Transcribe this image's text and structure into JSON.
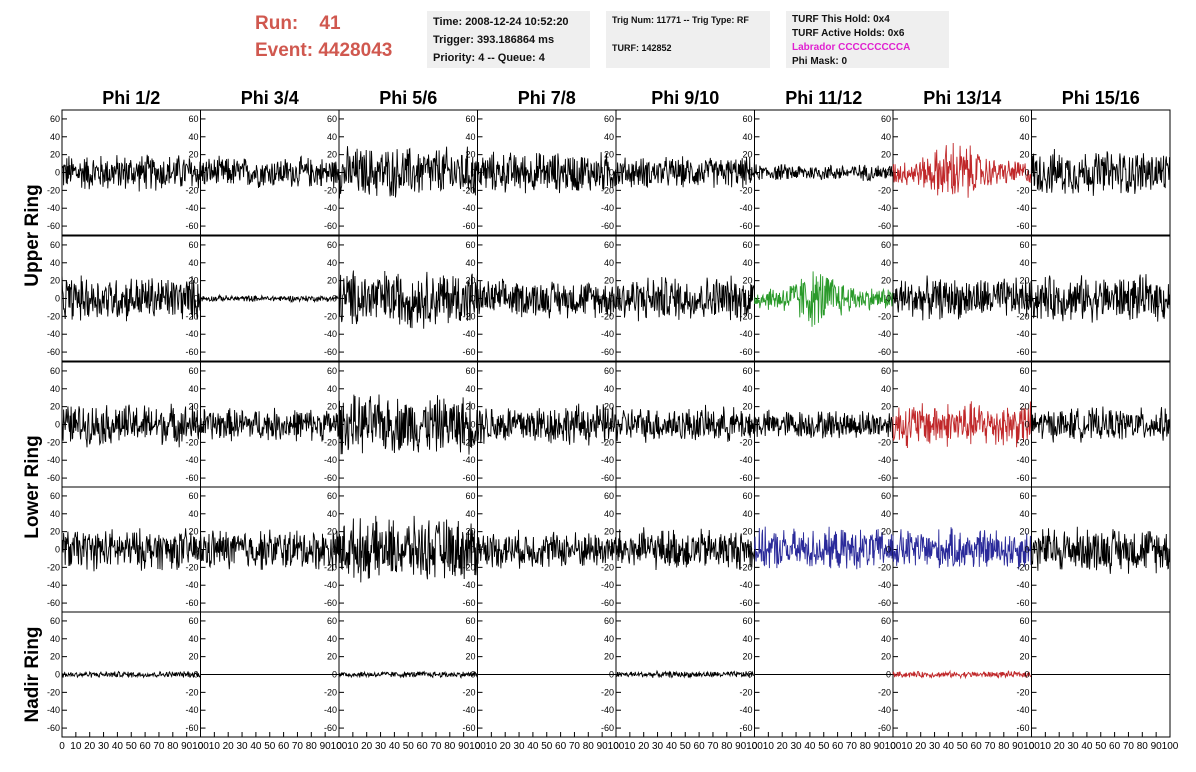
{
  "header": {
    "run_label": "Run:",
    "run_value": "41",
    "event_label": "Event:",
    "event_value": "4428043",
    "time": "Time: 2008-12-24 10:52:20",
    "trigger": "Trigger: 393.186864 ms",
    "priority": "Priority: 4 -- Queue: 4",
    "trig_num": "Trig Num: 11771 -- Trig Type: RF",
    "turf": "TURF: 142852",
    "turf_this_hold": "TURF This Hold: 0x4",
    "turf_active_holds": "TURF Active Holds: 0x6",
    "labrador": "Labrador CCCCCCCCCA",
    "phi_mask": "Phi Mask: 0"
  },
  "colors": {
    "red": "#c0282a",
    "green": "#2a9a2a",
    "blue": "#2a2a9a",
    "black": "#000000"
  },
  "chart_data": {
    "type": "line",
    "columns": [
      "Phi 1/2",
      "Phi 3/4",
      "Phi 5/6",
      "Phi 7/8",
      "Phi 9/10",
      "Phi 11/12",
      "Phi 13/14",
      "Phi 15/16"
    ],
    "rows": [
      "Upper Ring",
      "Lower Ring",
      "Nadir Ring"
    ],
    "row_panels": [
      {
        "ring": "Upper Ring",
        "panels": 2
      },
      {
        "ring": "Lower Ring",
        "panels": 2
      },
      {
        "ring": "Nadir Ring",
        "panels": 1
      }
    ],
    "xlim": [
      0,
      100
    ],
    "ylim": [
      -70,
      70
    ],
    "x_ticks": [
      0,
      10,
      20,
      30,
      40,
      50,
      60,
      70,
      80,
      90,
      100
    ],
    "y_ticks": [
      -60,
      -40,
      -20,
      0,
      20,
      40,
      60
    ],
    "panels": [
      [
        {
          "color": "black",
          "amp": 18,
          "noise": true
        },
        {
          "color": "black",
          "amp": 15,
          "noise": true
        },
        {
          "color": "black",
          "amp": 25,
          "noise": true
        },
        {
          "color": "black",
          "amp": 20,
          "noise": true
        },
        {
          "color": "black",
          "amp": 15,
          "noise": true
        },
        {
          "color": "black",
          "amp": 8,
          "noise": true
        },
        {
          "color": "red",
          "amp": 22,
          "noise": true,
          "pulse": true
        },
        {
          "color": "black",
          "amp": 22,
          "noise": true
        }
      ],
      [
        {
          "color": "black",
          "amp": 22,
          "noise": true
        },
        {
          "color": "black",
          "amp": 3,
          "noise": true
        },
        {
          "color": "black",
          "amp": 28,
          "noise": true
        },
        {
          "color": "black",
          "amp": 18,
          "noise": true
        },
        {
          "color": "black",
          "amp": 22,
          "noise": true
        },
        {
          "color": "green",
          "amp": 20,
          "noise": true,
          "pulse": true
        },
        {
          "color": "black",
          "amp": 20,
          "noise": true
        },
        {
          "color": "black",
          "amp": 22,
          "noise": true
        }
      ],
      [
        {
          "color": "black",
          "amp": 20,
          "noise": true
        },
        {
          "color": "black",
          "amp": 16,
          "noise": true
        },
        {
          "color": "black",
          "amp": 28,
          "noise": true
        },
        {
          "color": "black",
          "amp": 20,
          "noise": true
        },
        {
          "color": "black",
          "amp": 17,
          "noise": true
        },
        {
          "color": "black",
          "amp": 14,
          "noise": true
        },
        {
          "color": "red",
          "amp": 22,
          "noise": true
        },
        {
          "color": "black",
          "amp": 16,
          "noise": true
        }
      ],
      [
        {
          "color": "black",
          "amp": 20,
          "noise": true
        },
        {
          "color": "black",
          "amp": 20,
          "noise": true
        },
        {
          "color": "black",
          "amp": 30,
          "noise": true
        },
        {
          "color": "black",
          "amp": 18,
          "noise": true
        },
        {
          "color": "black",
          "amp": 20,
          "noise": true
        },
        {
          "color": "blue",
          "amp": 20,
          "noise": true
        },
        {
          "color": "blue",
          "amp": 20,
          "noise": true
        },
        {
          "color": "black",
          "amp": 22,
          "noise": true
        }
      ],
      [
        {
          "color": "black",
          "amp": 3,
          "noise": true
        },
        {
          "color": "black",
          "amp": 0,
          "noise": false
        },
        {
          "color": "black",
          "amp": 3,
          "noise": true
        },
        {
          "color": "black",
          "amp": 0,
          "noise": false
        },
        {
          "color": "black",
          "amp": 3,
          "noise": true
        },
        {
          "color": "black",
          "amp": 0,
          "noise": false
        },
        {
          "color": "red",
          "amp": 3,
          "noise": true
        },
        {
          "color": "black",
          "amp": 0,
          "noise": false
        }
      ]
    ]
  }
}
